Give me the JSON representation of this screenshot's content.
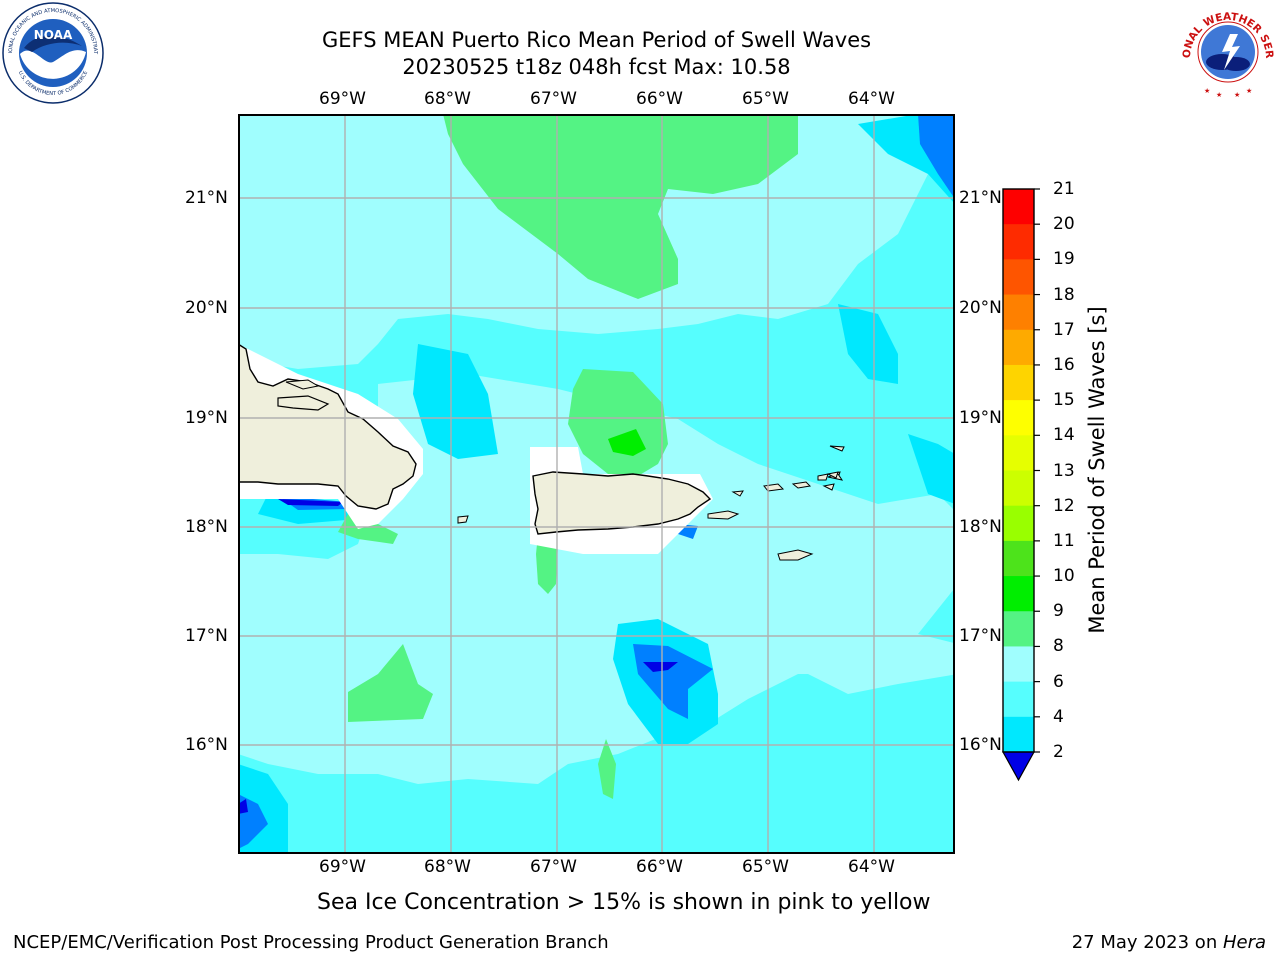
{
  "header": {
    "title_line1": "GEFS MEAN Puerto Rico Mean Period of Swell Waves",
    "title_line2": "20230525 t18z 048h fcst   Max: 10.58"
  },
  "logos": {
    "noara_agency_text": "NATIONAL OCEANIC AND ATMOSPHERIC ADMINISTRATION",
    "noaa_dept_text": "U.S. DEPARTMENT OF COMMERCE",
    "noaa_center_text": "NOAA",
    "nws_text": "NATIONAL WEATHER SERVICE"
  },
  "map": {
    "lon_labels": [
      "69°W",
      "68°W",
      "67°W",
      "66°W",
      "65°W",
      "64°W"
    ],
    "lat_labels": [
      "21°N",
      "20°N",
      "19°N",
      "18°N",
      "17°N",
      "16°N"
    ],
    "extent": {
      "lon_min": -70.0,
      "lon_max": -63.3,
      "lat_min": 15.0,
      "lat_max": 21.75
    }
  },
  "colorbar": {
    "label": "Mean Period of Swell Waves [s]",
    "ticks": [
      "21",
      "20",
      "19",
      "18",
      "17",
      "16",
      "15",
      "14",
      "13",
      "12",
      "11",
      "10",
      "9",
      "8",
      "6",
      "4",
      "2"
    ],
    "colors": [
      "#fe0000",
      "#fe2b00",
      "#fe5500",
      "#fe8000",
      "#feaa00",
      "#fed400",
      "#feff00",
      "#e6ff00",
      "#ccff00",
      "#99ff00",
      "#4de31b",
      "#00ee00",
      "#54f384",
      "#a0fefe",
      "#56fefe",
      "#00e8fe",
      "#0080ff",
      "#0000e6"
    ]
  },
  "notes": {
    "sea_ice": "Sea Ice Concentration > 15% is shown in pink to yellow"
  },
  "footer": {
    "left": "NCEP/EMC/Verification Post Processing Product Generation Branch",
    "date": "27 May 2023 on ",
    "machine": "Hera"
  },
  "palette": {
    "swell_lt9": "#a0fefe",
    "swell_lt8": "#56fefe",
    "swell_lt6": "#00e8fe",
    "swell_lt4": "#0080ff",
    "swell_lt2": "#0000e6",
    "swell_9_10": "#54f384",
    "swell_10_11": "#00ee00",
    "land": "#efefdc",
    "grid": "#b0b0b0"
  }
}
